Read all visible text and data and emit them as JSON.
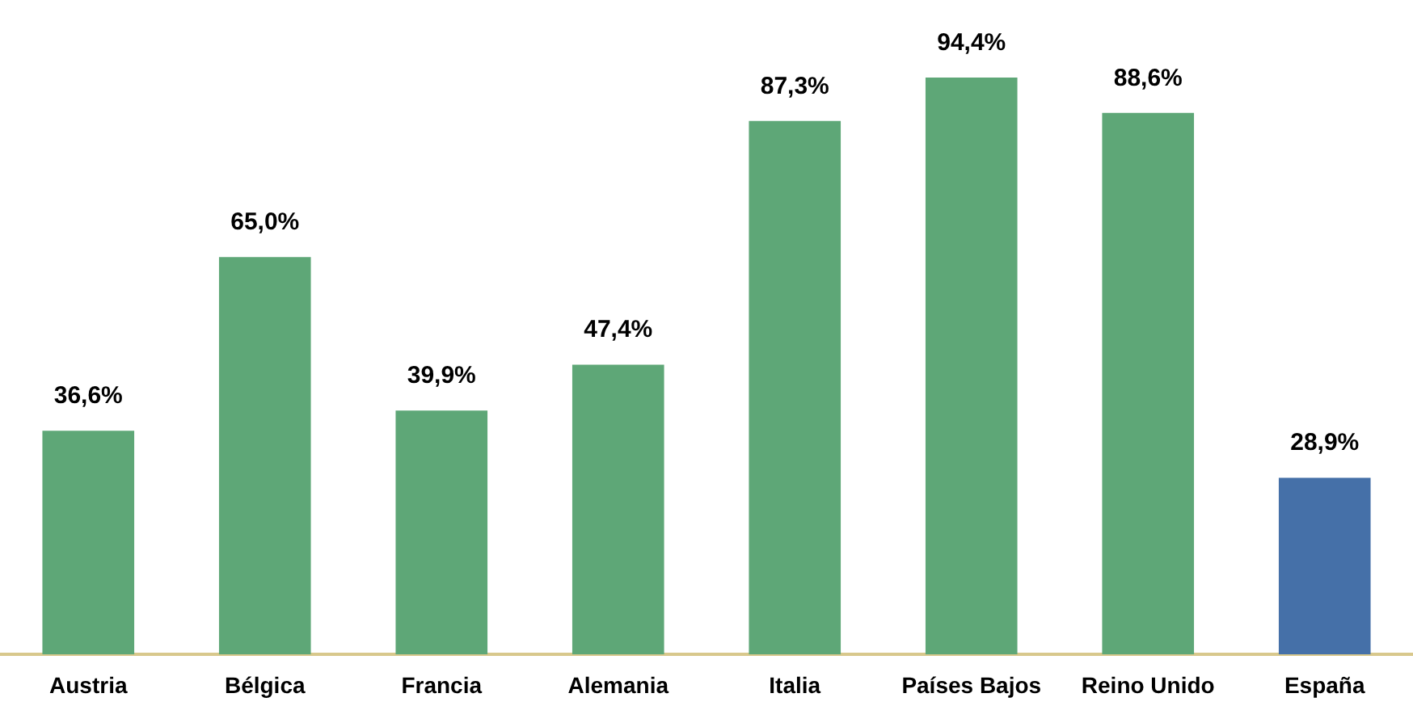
{
  "chart_data": {
    "type": "bar",
    "categories": [
      "Austria",
      "Bélgica",
      "Francia",
      "Alemania",
      "Italia",
      "Países Bajos",
      "Reino Unido",
      "España"
    ],
    "values": [
      36.6,
      65.0,
      39.9,
      47.4,
      87.3,
      94.4,
      88.6,
      28.9
    ],
    "colors": [
      "#5ea777",
      "#5ea777",
      "#5ea777",
      "#5ea777",
      "#5ea777",
      "#5ea777",
      "#5ea777",
      "#4570a8"
    ],
    "value_labels": [
      "36,6%",
      "65,0%",
      "39,9%",
      "47,4%",
      "87,3%",
      "94,4%",
      "88,6%",
      "28,9%"
    ]
  }
}
